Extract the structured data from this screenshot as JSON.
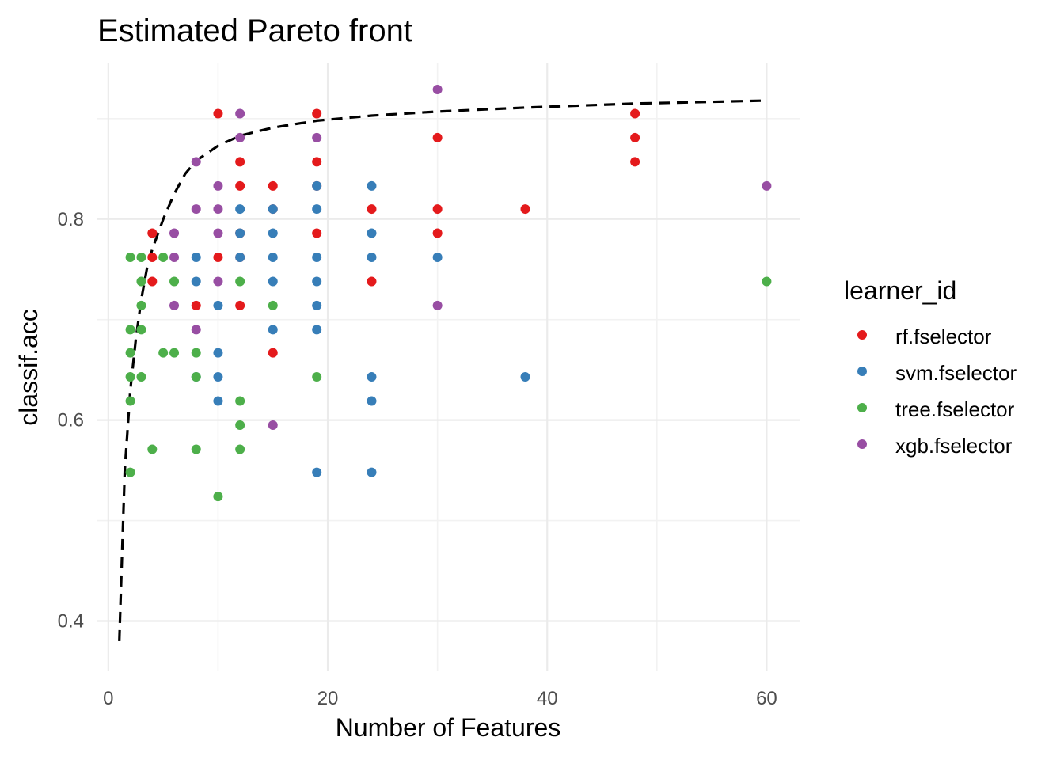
{
  "chart_data": {
    "type": "scatter",
    "title": "Estimated Pareto front",
    "xlabel": "Number of Features",
    "ylabel": "classif.acc",
    "xlim": [
      -1,
      63
    ],
    "ylim": [
      0.35,
      0.955
    ],
    "x_ticks": [
      0,
      20,
      40,
      60
    ],
    "x_tick_labels": [
      "0",
      "20",
      "40",
      "60"
    ],
    "x_minor_ticks": [
      10,
      30,
      50
    ],
    "y_ticks": [
      0.4,
      0.6,
      0.8
    ],
    "y_tick_labels": [
      "0.4",
      "0.6",
      "0.8"
    ],
    "y_minor_ticks": [
      0.5,
      0.7,
      0.9
    ],
    "grid": true,
    "legend": {
      "title": "learner_id",
      "position": "right"
    },
    "series": [
      {
        "name": "rf.fselector",
        "color": "#e41a1c",
        "points": [
          [
            4,
            0.786
          ],
          [
            4,
            0.762
          ],
          [
            4,
            0.738
          ],
          [
            8,
            0.714
          ],
          [
            10,
            0.905
          ],
          [
            10,
            0.762
          ],
          [
            12,
            0.857
          ],
          [
            12,
            0.833
          ],
          [
            12,
            0.786
          ],
          [
            12,
            0.762
          ],
          [
            12,
            0.714
          ],
          [
            15,
            0.833
          ],
          [
            15,
            0.81
          ],
          [
            15,
            0.667
          ],
          [
            19,
            0.905
          ],
          [
            19,
            0.857
          ],
          [
            19,
            0.833
          ],
          [
            19,
            0.786
          ],
          [
            24,
            0.81
          ],
          [
            24,
            0.738
          ],
          [
            30,
            0.881
          ],
          [
            30,
            0.81
          ],
          [
            30,
            0.786
          ],
          [
            38,
            0.81
          ],
          [
            48,
            0.905
          ],
          [
            48,
            0.881
          ],
          [
            48,
            0.857
          ]
        ]
      },
      {
        "name": "svm.fselector",
        "color": "#377eb8",
        "points": [
          [
            8,
            0.762
          ],
          [
            8,
            0.738
          ],
          [
            8,
            0.643
          ],
          [
            10,
            0.714
          ],
          [
            10,
            0.667
          ],
          [
            10,
            0.643
          ],
          [
            10,
            0.619
          ],
          [
            12,
            0.81
          ],
          [
            12,
            0.786
          ],
          [
            12,
            0.762
          ],
          [
            15,
            0.81
          ],
          [
            15,
            0.786
          ],
          [
            15,
            0.762
          ],
          [
            15,
            0.738
          ],
          [
            15,
            0.69
          ],
          [
            19,
            0.833
          ],
          [
            19,
            0.81
          ],
          [
            19,
            0.762
          ],
          [
            19,
            0.738
          ],
          [
            19,
            0.714
          ],
          [
            19,
            0.69
          ],
          [
            19,
            0.548
          ],
          [
            24,
            0.833
          ],
          [
            24,
            0.786
          ],
          [
            24,
            0.762
          ],
          [
            24,
            0.643
          ],
          [
            24,
            0.619
          ],
          [
            24,
            0.548
          ],
          [
            30,
            0.762
          ],
          [
            38,
            0.643
          ]
        ]
      },
      {
        "name": "tree.fselector",
        "color": "#4daf4a",
        "points": [
          [
            2,
            0.762
          ],
          [
            2,
            0.69
          ],
          [
            2,
            0.667
          ],
          [
            2,
            0.643
          ],
          [
            2,
            0.619
          ],
          [
            2,
            0.548
          ],
          [
            3,
            0.762
          ],
          [
            3,
            0.738
          ],
          [
            3,
            0.714
          ],
          [
            3,
            0.69
          ],
          [
            3,
            0.643
          ],
          [
            4,
            0.571
          ],
          [
            5,
            0.762
          ],
          [
            5,
            0.667
          ],
          [
            6,
            0.738
          ],
          [
            6,
            0.667
          ],
          [
            8,
            0.667
          ],
          [
            8,
            0.643
          ],
          [
            8,
            0.571
          ],
          [
            10,
            0.524
          ],
          [
            12,
            0.738
          ],
          [
            12,
            0.619
          ],
          [
            12,
            0.595
          ],
          [
            12,
            0.571
          ],
          [
            15,
            0.714
          ],
          [
            19,
            0.643
          ],
          [
            60,
            0.738
          ]
        ]
      },
      {
        "name": "xgb.fselector",
        "color": "#984ea3",
        "points": [
          [
            6,
            0.786
          ],
          [
            6,
            0.762
          ],
          [
            6,
            0.714
          ],
          [
            8,
            0.857
          ],
          [
            8,
            0.81
          ],
          [
            8,
            0.69
          ],
          [
            10,
            0.833
          ],
          [
            10,
            0.81
          ],
          [
            10,
            0.786
          ],
          [
            10,
            0.738
          ],
          [
            12,
            0.905
          ],
          [
            12,
            0.881
          ],
          [
            15,
            0.595
          ],
          [
            19,
            0.881
          ],
          [
            30,
            0.929
          ],
          [
            30,
            0.714
          ],
          [
            60,
            0.833
          ]
        ]
      }
    ],
    "front": {
      "style": "dashed",
      "color": "#000000",
      "points": [
        [
          1,
          0.38
        ],
        [
          1.2,
          0.45
        ],
        [
          1.5,
          0.55
        ],
        [
          2,
          0.63
        ],
        [
          2.5,
          0.68
        ],
        [
          3,
          0.72
        ],
        [
          3.5,
          0.75
        ],
        [
          4,
          0.77
        ],
        [
          5,
          0.8
        ],
        [
          6,
          0.825
        ],
        [
          7,
          0.845
        ],
        [
          8,
          0.858
        ],
        [
          10,
          0.873
        ],
        [
          12,
          0.883
        ],
        [
          15,
          0.891
        ],
        [
          19,
          0.898
        ],
        [
          24,
          0.903
        ],
        [
          30,
          0.907
        ],
        [
          38,
          0.911
        ],
        [
          48,
          0.915
        ],
        [
          60,
          0.918
        ]
      ]
    }
  }
}
